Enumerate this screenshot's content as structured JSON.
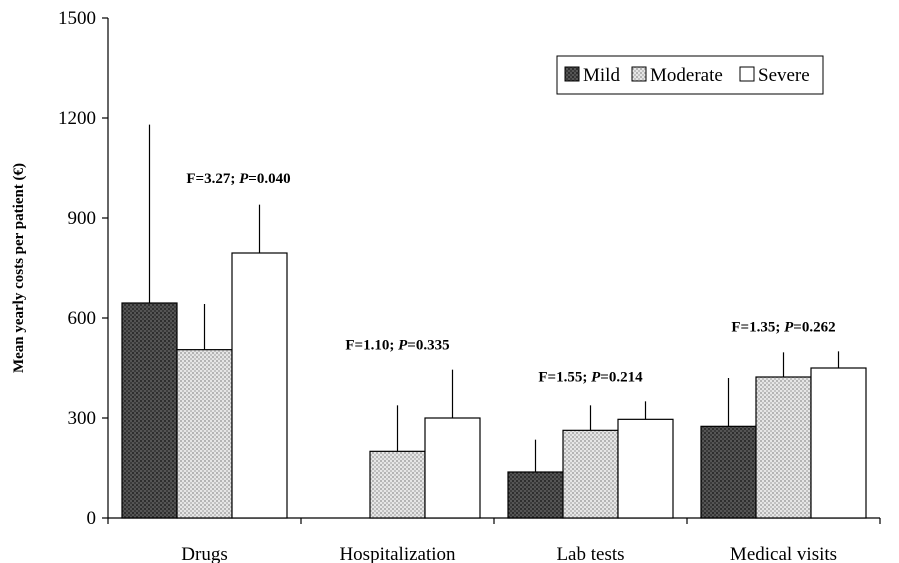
{
  "chart_data": {
    "type": "bar",
    "categories": [
      "Drugs",
      "Hospitalization",
      "Lab tests",
      "Medical visits"
    ],
    "ylabel": "Mean yearly costs per patient (€)",
    "xlabel": "",
    "title": "",
    "ylim": [
      0,
      1500
    ],
    "yticks": [
      0,
      300,
      600,
      900,
      1200,
      1500
    ],
    "legend": {
      "placement": "top-right",
      "entries": [
        "Mild",
        "Moderate",
        "Severe"
      ]
    },
    "series": [
      {
        "name": "Mild",
        "values": [
          645,
          0,
          138,
          275
        ],
        "errors": [
          1180,
          null,
          235,
          420
        ],
        "color": "#4a4a4a",
        "pattern": "dark-dotted"
      },
      {
        "name": "Moderate",
        "values": [
          505,
          200,
          263,
          423
        ],
        "errors": [
          642,
          338,
          338,
          497
        ],
        "color": "#d8d8d8",
        "pattern": "light-crosshatch"
      },
      {
        "name": "Severe",
        "values": [
          795,
          300,
          296,
          450
        ],
        "errors": [
          940,
          445,
          350,
          500
        ],
        "color": "#ffffff",
        "pattern": "none"
      }
    ],
    "annotations": [
      {
        "category": "Drugs",
        "F": "F=3.27; ",
        "P_label": "P",
        "P_value": "=0.040"
      },
      {
        "category": "Hospitalization",
        "F": "F=1.10; ",
        "P_label": "P",
        "P_value": "=0.335"
      },
      {
        "category": "Lab tests",
        "F": "F=1.55; ",
        "P_label": "P",
        "P_value": "=0.214"
      },
      {
        "category": "Medical visits",
        "F": "F=1.35; ",
        "P_label": "P",
        "P_value": "=0.262"
      }
    ],
    "grid": false
  }
}
